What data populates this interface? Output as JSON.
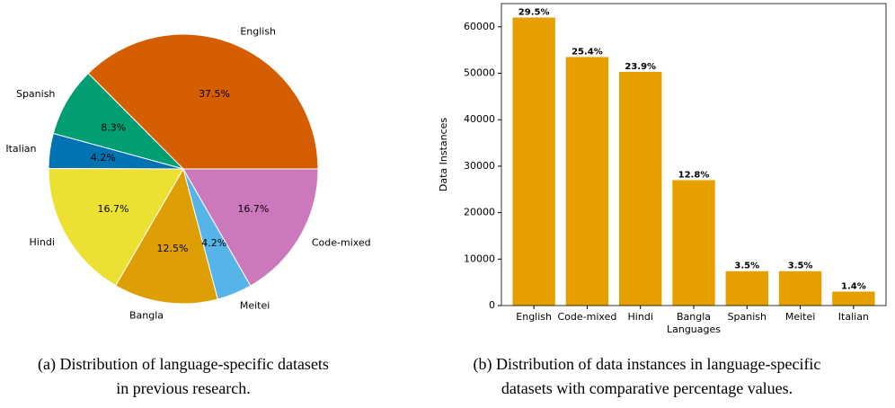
{
  "chart_data": [
    {
      "type": "pie",
      "categories": [
        "English",
        "Spanish",
        "Italian",
        "Hindi",
        "Bangla",
        "Meitei",
        "Code-mixed"
      ],
      "values": [
        37.5,
        8.3,
        4.2,
        16.7,
        12.5,
        4.2,
        16.7
      ],
      "value_labels": [
        "37.5%",
        "8.3%",
        "4.2%",
        "16.7%",
        "12.5%",
        "4.2%",
        "16.7%"
      ],
      "colors": [
        "#d55e00",
        "#029e73",
        "#0173b2",
        "#ece133",
        "#de9f05",
        "#56b4e9",
        "#cc78bc"
      ],
      "caption": [
        "(a) Distribution of language-specific datasets",
        "in previous research."
      ]
    },
    {
      "type": "bar",
      "categories": [
        "English",
        "Code-mixed",
        "Hindi",
        "Bangla",
        "Spanish",
        "Meitei",
        "Italian"
      ],
      "values": [
        62000,
        53500,
        50300,
        27000,
        7400,
        7400,
        3000
      ],
      "annotations": [
        "29.5%",
        "25.4%",
        "23.9%",
        "12.8%",
        "3.5%",
        "3.5%",
        "1.4%"
      ],
      "color": "#e5a000",
      "xlabel": "Languages",
      "ylabel": "Data Instances",
      "ylim": [
        0,
        65000
      ],
      "yticks": [
        0,
        10000,
        20000,
        30000,
        40000,
        50000,
        60000
      ],
      "caption": [
        "(b) Distribution of data instances in language-specific",
        "datasets with comparative percentage values."
      ]
    }
  ]
}
